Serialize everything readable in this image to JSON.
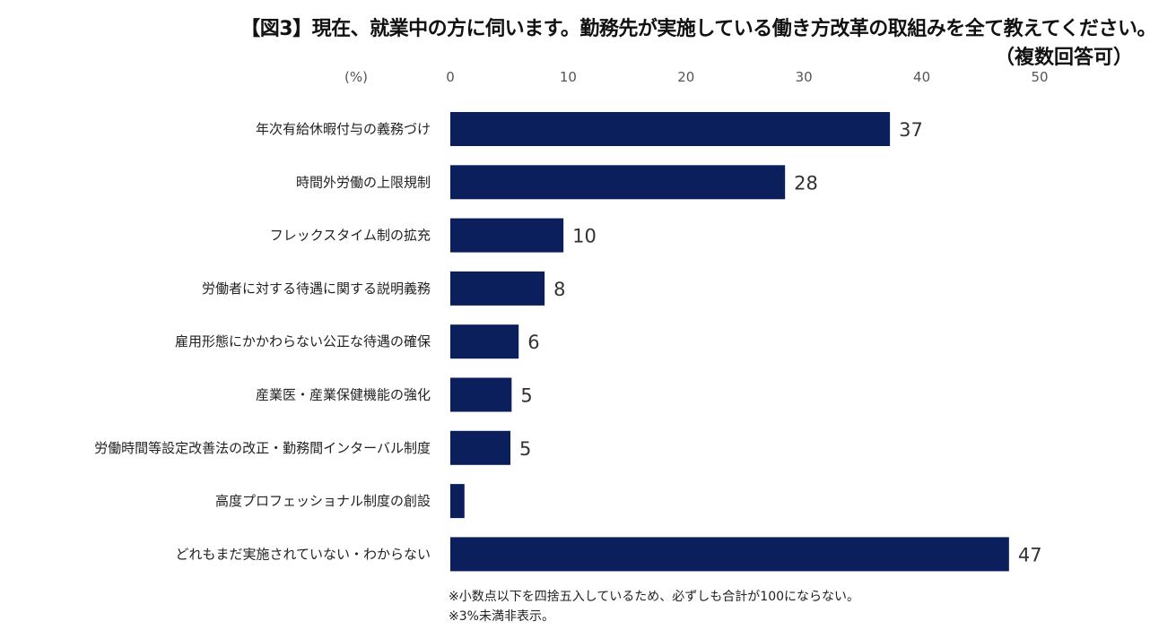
{
  "title": "【図3】現在、就業中の方に伺います。勤務先が実施している働き方改革の取組みを全て教えてください。",
  "subtitle": "（複数回答可）",
  "colors": {
    "bar": "#0b1f5c"
  },
  "chart_data": {
    "type": "bar",
    "orientation": "horizontal",
    "unit_label": "(%)",
    "xlim": [
      0,
      50
    ],
    "ticks": [
      0,
      10,
      20,
      30,
      40,
      50
    ],
    "axis_position": "top",
    "grid": false,
    "categories": [
      "年次有給休暇付与の義務づけ",
      "時間外労働の上限規制",
      "フレックスタイム制の拡充",
      "労働者に対する待遇に関する説明義務",
      "雇用形態にかかわらない公正な待遇の確保",
      "産業医・産業保健機能の強化",
      "労働時間等設定改善法の改正・勤務間インターバル制度",
      "高度プロフェッショナル制度の創設",
      "どれもまだ実施されていない・わからない"
    ],
    "values": [
      37.3,
      28.4,
      9.6,
      8.0,
      5.8,
      5.2,
      5.1,
      1.2,
      47.4
    ],
    "data_labels": [
      "37",
      "28",
      "10",
      "8",
      "6",
      "5",
      "5",
      "",
      "47"
    ]
  },
  "notes": [
    "※小数点以下を四捨五入しているため、必ずしも合計が100にならない。",
    "※3%未満非表示。"
  ]
}
